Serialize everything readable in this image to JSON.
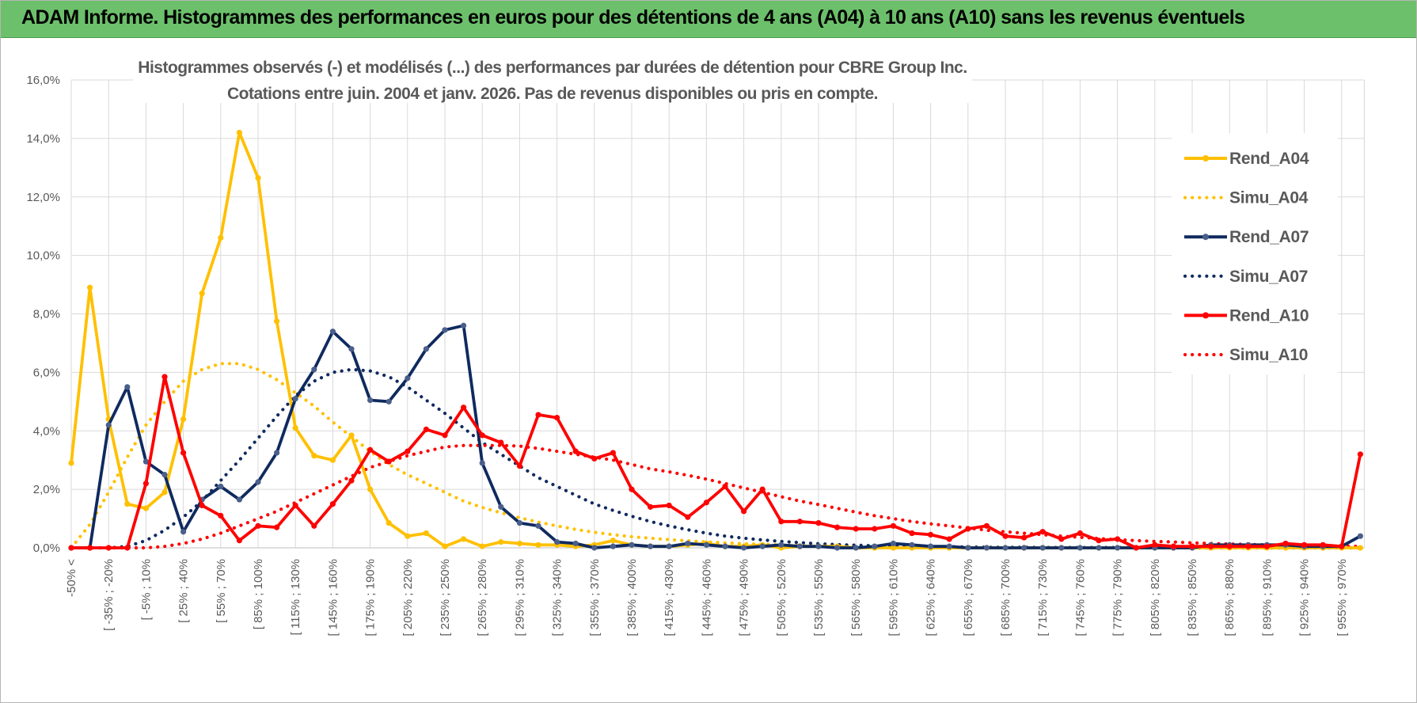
{
  "banner": {
    "title": "ADAM Informe. Histogrammes des performances en euros pour des détentions de 4 ans (A04) à 10 ans (A10) sans les revenus éventuels"
  },
  "colors": {
    "banner": "#6cc06b",
    "A04": "#ffc000",
    "A07": "#0f2a5f",
    "A10": "#ff0000",
    "grid": "#d9d9d9",
    "text": "#595959"
  },
  "chart_data": {
    "type": "line",
    "title_lines": [
      "Histogrammes observés (-) et modélisés (...) des performances par durées de détention pour CBRE Group Inc.",
      "Cotations entre juin. 2004 et janv. 2026. Pas de revenus disponibles ou pris en compte."
    ],
    "ylim": [
      0,
      16
    ],
    "yticks": [
      "0,0%",
      "2,0%",
      "4,0%",
      "6,0%",
      "8,0%",
      "10,0%",
      "12,0%",
      "14,0%",
      "16,0%"
    ],
    "xtick_labels": [
      "-50% <",
      "[ -35% ; -20%",
      "[ -5% ; 10%",
      "[ 25% ; 40%",
      "[ 55% ; 70%",
      "[ 85% ; 100%",
      "[ 115% ; 130%",
      "[ 145% ; 160%",
      "[ 175% ; 190%",
      "[ 205% ; 220%",
      "[ 235% ; 250%",
      "[ 265% ; 280%",
      "[ 295% ; 310%",
      "[ 325% ; 340%",
      "[ 355% ; 370%",
      "[ 385% ; 400%",
      "[ 415% ; 430%",
      "[ 445% ; 460%",
      "[ 475% ; 490%",
      "[ 505% ; 520%",
      "[ 535% ; 550%",
      "[ 565% ; 580%",
      "[ 595% ; 610%",
      "[ 625% ; 640%",
      "[ 655% ; 670%",
      "[ 685% ; 700%",
      "[ 715% ; 730%",
      "[ 745% ; 760%",
      "[ 775% ; 790%",
      "[ 805% ; 820%",
      "[ 835% ; 850%",
      "[ 865% ; 880%",
      "[ 895% ; 910%",
      "[ 925% ; 940%",
      "[ 955% ; 970%"
    ],
    "n_points": 70,
    "legend": [
      "Rend_A04",
      "Simu_A04",
      "Rend_A07",
      "Simu_A07",
      "Rend_A10",
      "Simu_A10"
    ],
    "series": [
      {
        "name": "Rend_A04",
        "style": "solid",
        "color": "#ffc000",
        "values": [
          2.9,
          8.9,
          4.4,
          1.5,
          1.35,
          1.9,
          4.4,
          8.7,
          10.6,
          14.2,
          12.65,
          7.75,
          4.1,
          3.15,
          3.0,
          3.85,
          2.0,
          0.85,
          0.4,
          0.5,
          0.05,
          0.3,
          0.05,
          0.2,
          0.15,
          0.1,
          0.1,
          0.05,
          0.1,
          0.25,
          0.1,
          0.05,
          0.05,
          0.1,
          0.15,
          0.05,
          0.05,
          0.1,
          0.0,
          0.05,
          0.05,
          0.05,
          0.0,
          0.0,
          0.0,
          0.0,
          0.0,
          0.0,
          0.0,
          0.0,
          0.0,
          0.0,
          0.0,
          0.0,
          0.0,
          0.0,
          0.0,
          0.0,
          0.0,
          0.0,
          0.0,
          0.0,
          0.0,
          0.0,
          0.0,
          0.0,
          0.0,
          0.0,
          0.0,
          0.0
        ]
      },
      {
        "name": "Simu_A04",
        "style": "dotted",
        "color": "#ffc000",
        "values": [
          0.0,
          0.8,
          1.9,
          3.1,
          4.2,
          5.0,
          5.7,
          6.1,
          6.3,
          6.3,
          6.1,
          5.75,
          5.3,
          4.85,
          4.3,
          3.8,
          3.3,
          2.85,
          2.5,
          2.2,
          1.9,
          1.6,
          1.38,
          1.2,
          1.03,
          0.88,
          0.75,
          0.63,
          0.53,
          0.45,
          0.38,
          0.33,
          0.28,
          0.24,
          0.2,
          0.17,
          0.14,
          0.12,
          0.1,
          0.08,
          0.07,
          0.06,
          0.05,
          0.04,
          0.03,
          0.03,
          0.02,
          0.02,
          0.02,
          0.01,
          0.01,
          0.01,
          0.01,
          0.01,
          0.0,
          0.0,
          0.0,
          0.0,
          0.0,
          0.0,
          0.0,
          0.0,
          0.0,
          0.0,
          0.0,
          0.0,
          0.0,
          0.0,
          0.0,
          0.0
        ]
      },
      {
        "name": "Rend_A07",
        "style": "solid",
        "color": "#0f2a5f",
        "values": [
          0.0,
          0.0,
          4.2,
          5.5,
          2.95,
          2.5,
          0.55,
          1.65,
          2.1,
          1.65,
          2.25,
          3.25,
          5.1,
          6.1,
          7.4,
          6.8,
          5.05,
          5.0,
          5.8,
          6.8,
          7.45,
          7.6,
          2.9,
          1.4,
          0.85,
          0.75,
          0.2,
          0.15,
          0.0,
          0.05,
          0.1,
          0.05,
          0.05,
          0.15,
          0.1,
          0.05,
          0.0,
          0.05,
          0.1,
          0.05,
          0.05,
          0.0,
          0.0,
          0.05,
          0.15,
          0.1,
          0.05,
          0.05,
          0.0,
          0.0,
          0.0,
          0.0,
          0.0,
          0.0,
          0.0,
          0.0,
          0.0,
          0.0,
          0.0,
          0.0,
          0.0,
          0.1,
          0.1,
          0.1,
          0.1,
          0.1,
          0.05,
          0.05,
          0.05,
          0.4
        ]
      },
      {
        "name": "Simu_A07",
        "style": "dotted",
        "color": "#0f2a5f",
        "values": [
          0.0,
          0.0,
          0.0,
          0.05,
          0.25,
          0.6,
          1.05,
          1.6,
          2.3,
          3.0,
          3.75,
          4.5,
          5.2,
          5.7,
          6.0,
          6.1,
          6.05,
          5.85,
          5.5,
          5.05,
          4.6,
          4.1,
          3.6,
          3.2,
          2.8,
          2.4,
          2.1,
          1.8,
          1.5,
          1.28,
          1.08,
          0.9,
          0.75,
          0.62,
          0.5,
          0.4,
          0.33,
          0.27,
          0.22,
          0.18,
          0.14,
          0.11,
          0.09,
          0.07,
          0.06,
          0.05,
          0.04,
          0.03,
          0.03,
          0.02,
          0.02,
          0.02,
          0.01,
          0.01,
          0.01,
          0.01,
          0.01,
          0.01,
          0.0,
          0.0,
          0.0,
          0.0,
          0.0,
          0.0,
          0.0,
          0.0,
          0.0,
          0.0,
          0.0,
          0.0
        ]
      },
      {
        "name": "Rend_A10",
        "style": "solid",
        "color": "#ff0000",
        "values": [
          0.0,
          0.0,
          0.0,
          0.0,
          2.2,
          5.85,
          3.25,
          1.45,
          1.1,
          0.25,
          0.75,
          0.7,
          1.45,
          0.75,
          1.5,
          2.3,
          3.35,
          2.95,
          3.3,
          4.05,
          3.85,
          4.8,
          3.85,
          3.6,
          2.8,
          4.55,
          4.45,
          3.3,
          3.05,
          3.25,
          2.0,
          1.4,
          1.45,
          1.05,
          1.55,
          2.1,
          1.25,
          2.0,
          0.9,
          0.9,
          0.85,
          0.7,
          0.65,
          0.65,
          0.75,
          0.5,
          0.45,
          0.3,
          0.65,
          0.75,
          0.4,
          0.35,
          0.55,
          0.3,
          0.5,
          0.25,
          0.3,
          0.0,
          0.1,
          0.05,
          0.05,
          0.05,
          0.05,
          0.05,
          0.05,
          0.15,
          0.1,
          0.1,
          0.05,
          3.2
        ]
      },
      {
        "name": "Simu_A10",
        "style": "dotted",
        "color": "#ff0000",
        "values": [
          0.0,
          0.0,
          0.0,
          0.0,
          0.0,
          0.05,
          0.15,
          0.3,
          0.5,
          0.75,
          1.0,
          1.25,
          1.55,
          1.85,
          2.15,
          2.45,
          2.75,
          2.95,
          3.15,
          3.3,
          3.45,
          3.5,
          3.5,
          3.5,
          3.48,
          3.4,
          3.3,
          3.2,
          3.1,
          3.0,
          2.85,
          2.7,
          2.6,
          2.48,
          2.35,
          2.2,
          2.05,
          1.9,
          1.75,
          1.6,
          1.48,
          1.35,
          1.22,
          1.1,
          1.0,
          0.9,
          0.82,
          0.75,
          0.68,
          0.6,
          0.55,
          0.5,
          0.45,
          0.4,
          0.36,
          0.32,
          0.28,
          0.25,
          0.22,
          0.2,
          0.17,
          0.15,
          0.13,
          0.12,
          0.1,
          0.09,
          0.08,
          0.07,
          0.06,
          0.05
        ]
      }
    ]
  }
}
